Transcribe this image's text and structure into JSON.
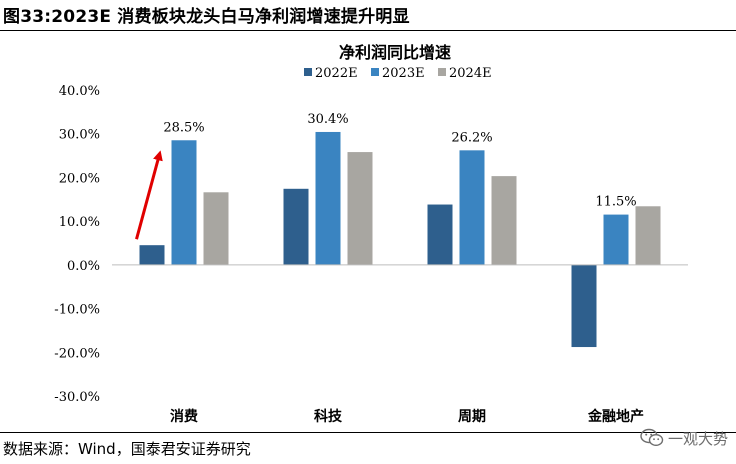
{
  "figure": {
    "title": "图33:2023E 消费板块龙头白马净利润增速提升明显",
    "source": "数据来源：Wind，国泰君安证券研究",
    "watermark": "一观大势",
    "watermark_icon": "wechat-icon"
  },
  "chart_data": {
    "type": "bar",
    "title": "净利润同比增速",
    "xlabel": "",
    "ylabel": "",
    "categories": [
      "消费",
      "科技",
      "周期",
      "金融地产"
    ],
    "series": [
      {
        "name": "2022E",
        "color": "#2e5f8d",
        "values": [
          4.5,
          17.4,
          13.8,
          -18.8
        ]
      },
      {
        "name": "2023E",
        "color": "#3a84c1",
        "values": [
          28.5,
          30.4,
          26.2,
          11.5
        ]
      },
      {
        "name": "2024E",
        "color": "#a8a6a1",
        "values": [
          16.6,
          25.8,
          20.3,
          13.4
        ]
      }
    ],
    "data_labels": [
      {
        "category": "消费",
        "series": "2023E",
        "text": "28.5%"
      },
      {
        "category": "科技",
        "series": "2023E",
        "text": "30.4%"
      },
      {
        "category": "周期",
        "series": "2023E",
        "text": "26.2%"
      },
      {
        "category": "金融地产",
        "series": "2023E",
        "text": "11.5%"
      }
    ],
    "yticks": [
      "40.0%",
      "30.0%",
      "20.0%",
      "10.0%",
      "0.0%",
      "-10.0%",
      "-20.0%",
      "-30.0%"
    ],
    "ylim": [
      -30,
      40
    ],
    "grid": false,
    "legend": "top-center",
    "annotation": {
      "type": "arrow",
      "color": "#e00000",
      "from": {
        "category": "消费",
        "series": "2022E"
      },
      "to": {
        "category": "消费",
        "series": "2023E"
      }
    }
  }
}
